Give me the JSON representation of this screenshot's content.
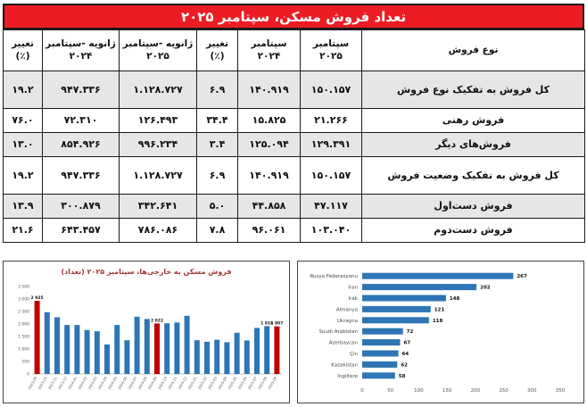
{
  "title": "تعداد فروش مسکن، سپتامبر ۲۰۲۵",
  "colors": {
    "accent_red": "#ed1c24",
    "bar_blue": "#2e75b6",
    "bar_red": "#c00000",
    "row_shade": "#e7e6e6",
    "chart_title_red": "#9c3734"
  },
  "table": {
    "headers": [
      "نوع فروش",
      "سپتامبر ۲۰۲۵",
      "سپتامبر ۲۰۲۴",
      "تغییر (٪)",
      "ژانویه -سپتامبر ۲۰۲۵",
      "ژانویه -سپتامبر ۲۰۲۴",
      "تغییر (٪)"
    ],
    "rows": [
      {
        "label": "کل فروش به تفکیک نوع فروش",
        "cells": [
          "۱۵۰.۱۵۷",
          "۱۴۰.۹۱۹",
          "۶.۹",
          "۱.۱۲۸.۷۲۷",
          "۹۴۷.۳۳۶",
          "۱۹.۲"
        ]
      },
      {
        "label": "فروش رهنی",
        "cells": [
          "۲۱.۲۶۶",
          "۱۵.۸۲۵",
          "۳۴.۴",
          "۱۲۶.۴۹۳",
          "۷۲.۳۱۰",
          "۷۶.۰"
        ]
      },
      {
        "label": "فروش‌های دیگر",
        "cells": [
          "۱۲۹.۳۹۱",
          "۱۲۵.۰۹۴",
          "۳.۴",
          "۹۹۶.۲۳۴",
          "۸۵۴.۹۲۶",
          "۱۳.۰"
        ]
      },
      {
        "label": "کل فروش به تفکیک وضعیت فروش",
        "cells": [
          "۱۵۰.۱۵۷",
          "۱۴۰.۹۱۹",
          "۶.۹",
          "۱.۱۲۸.۷۲۷",
          "۹۴۷.۳۳۶",
          "۱۹.۲"
        ]
      },
      {
        "label": "فروش دست‌اول",
        "cells": [
          "۴۷.۱۱۷",
          "۴۴.۸۵۸",
          "۵.۰",
          "۳۴۲.۶۴۱",
          "۳۰۰.۸۷۹",
          "۱۳.۹"
        ]
      },
      {
        "label": "فروش دست‌دوم",
        "cells": [
          "۱۰۳.۰۴۰",
          "۹۶.۰۶۱",
          "۷.۸",
          "۷۸۶.۰۸۶",
          "۶۴۳.۴۵۷",
          "۲۱.۶"
        ]
      }
    ]
  },
  "chart_data": [
    {
      "type": "bar",
      "title": "فروش مسکن به خارجی‌ها، سپتامبر ۲۰۲۵ (تعداد)",
      "categories": [
        "2023-09",
        "2023-10",
        "2023-11",
        "2023-12",
        "2024-01",
        "2024-02",
        "2024-03",
        "2024-04",
        "2024-05",
        "2024-06",
        "2024-07",
        "2024-08",
        "2024-09",
        "2024-10",
        "2024-11",
        "2024-12",
        "2025-01",
        "2025-02",
        "2025-03",
        "2025-04",
        "2025-05",
        "2025-06",
        "2025-07",
        "2025-08",
        "2025-09"
      ],
      "values": [
        2925,
        2470,
        2270,
        1960,
        1960,
        1760,
        1710,
        1180,
        1960,
        1350,
        2290,
        2200,
        2022,
        2030,
        2060,
        2330,
        1350,
        1290,
        1370,
        1270,
        1650,
        1340,
        1840,
        1916,
        1907
      ],
      "highlight_indices": [
        0,
        12,
        24
      ],
      "point_labels": {
        "0": "2 925",
        "12": "2 022",
        "23": "1 916",
        "24": "1 907"
      },
      "ylim": [
        0,
        3500
      ],
      "ytick_labels": [
        "0",
        "500",
        "1 000",
        "1 500",
        "2 000",
        "2 500",
        "3 000",
        "3 500"
      ],
      "xlabel": "",
      "ylabel": "",
      "grid": false,
      "legend": "none"
    },
    {
      "type": "bar",
      "orientation": "horizontal",
      "title": "",
      "categories": [
        "Rusya Federasyonu",
        "İran",
        "Irak",
        "Almanya",
        "Ukrayna",
        "Suudi Arabistan",
        "Azerbaycan",
        "Çin",
        "Kazakistan",
        "İngiltere"
      ],
      "values": [
        267,
        202,
        148,
        121,
        118,
        72,
        67,
        64,
        62,
        58
      ],
      "xlim": [
        0,
        350
      ],
      "xtick_labels": [
        "0",
        "50",
        "100",
        "150",
        "200",
        "250",
        "300",
        "350"
      ],
      "xlabel": "",
      "ylabel": "",
      "grid": false,
      "legend": "none"
    }
  ]
}
